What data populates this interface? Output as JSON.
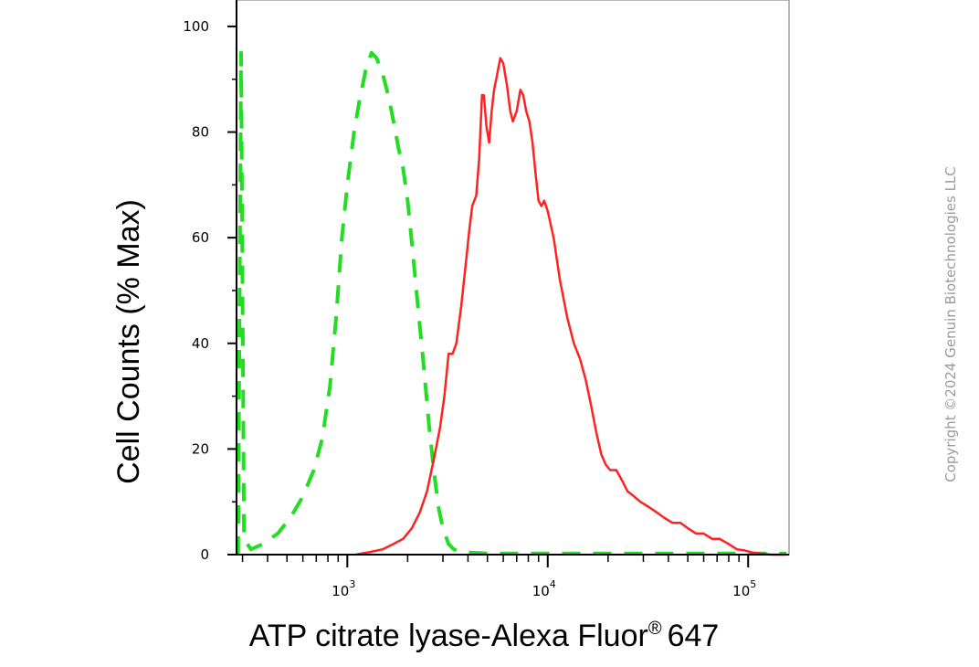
{
  "chart_data": {
    "type": "line",
    "xlabel": "ATP citrate lyase-Alexa Fluor",
    "xlabel_super": "®",
    "xlabel_suffix": "647",
    "ylabel": "Cell Counts (% Max)",
    "x_scale": "log",
    "xlim": [
      280,
      160000
    ],
    "ylim": [
      0,
      105
    ],
    "y_ticks": [
      0,
      20,
      40,
      60,
      80,
      100
    ],
    "x_major_ticks": [
      {
        "value": 1000,
        "base": "10",
        "exp": "3"
      },
      {
        "value": 10000,
        "base": "10",
        "exp": "4"
      },
      {
        "value": 100000,
        "base": "10",
        "exp": "5"
      }
    ],
    "grid": false,
    "legend": "none",
    "series": [
      {
        "color": "#22dd22",
        "style": "dashed",
        "points": [
          [
            285,
            0
          ],
          [
            295,
            95
          ],
          [
            305,
            3
          ],
          [
            330,
            1
          ],
          [
            380,
            2
          ],
          [
            450,
            4
          ],
          [
            520,
            7
          ],
          [
            600,
            11
          ],
          [
            680,
            16
          ],
          [
            750,
            22
          ],
          [
            820,
            32
          ],
          [
            880,
            45
          ],
          [
            940,
            60
          ],
          [
            1000,
            70
          ],
          [
            1080,
            80
          ],
          [
            1150,
            86
          ],
          [
            1240,
            92
          ],
          [
            1320,
            95
          ],
          [
            1400,
            94
          ],
          [
            1500,
            91
          ],
          [
            1600,
            87
          ],
          [
            1700,
            82
          ],
          [
            1800,
            77
          ],
          [
            1900,
            73
          ],
          [
            2000,
            67
          ],
          [
            2100,
            59
          ],
          [
            2250,
            47
          ],
          [
            2400,
            36
          ],
          [
            2550,
            25
          ],
          [
            2700,
            16
          ],
          [
            2850,
            9
          ],
          [
            3000,
            5
          ],
          [
            3200,
            2
          ],
          [
            3400,
            1
          ],
          [
            3700,
            0.5
          ],
          [
            5000,
            0.2
          ],
          [
            20000,
            0.2
          ],
          [
            100000,
            0.2
          ],
          [
            155000,
            0.2
          ]
        ]
      },
      {
        "color": "#ff2222",
        "style": "solid",
        "points": [
          [
            1100,
            0
          ],
          [
            1300,
            0.5
          ],
          [
            1500,
            1
          ],
          [
            1700,
            2
          ],
          [
            1900,
            3
          ],
          [
            2100,
            5
          ],
          [
            2300,
            8
          ],
          [
            2500,
            12
          ],
          [
            2700,
            18
          ],
          [
            2900,
            24
          ],
          [
            3050,
            30
          ],
          [
            3200,
            38
          ],
          [
            3350,
            38
          ],
          [
            3500,
            40
          ],
          [
            3700,
            47
          ],
          [
            3900,
            55
          ],
          [
            4050,
            61
          ],
          [
            4200,
            66
          ],
          [
            4400,
            68
          ],
          [
            4550,
            75
          ],
          [
            4700,
            87
          ],
          [
            4800,
            87
          ],
          [
            4950,
            81
          ],
          [
            5100,
            78
          ],
          [
            5250,
            84
          ],
          [
            5400,
            88
          ],
          [
            5600,
            91
          ],
          [
            5800,
            94
          ],
          [
            6000,
            93
          ],
          [
            6250,
            89
          ],
          [
            6500,
            84
          ],
          [
            6700,
            82
          ],
          [
            7000,
            84
          ],
          [
            7300,
            88
          ],
          [
            7550,
            87
          ],
          [
            7800,
            84
          ],
          [
            8100,
            82
          ],
          [
            8400,
            78
          ],
          [
            8700,
            72
          ],
          [
            9000,
            67
          ],
          [
            9300,
            66
          ],
          [
            9600,
            67
          ],
          [
            10000,
            65
          ],
          [
            10700,
            60
          ],
          [
            11500,
            52
          ],
          [
            12500,
            45
          ],
          [
            13500,
            40
          ],
          [
            14500,
            37
          ],
          [
            15500,
            33
          ],
          [
            16500,
            28
          ],
          [
            17500,
            23
          ],
          [
            18500,
            19
          ],
          [
            19500,
            17
          ],
          [
            20500,
            16
          ],
          [
            22000,
            16
          ],
          [
            23500,
            14
          ],
          [
            25000,
            12
          ],
          [
            27000,
            11
          ],
          [
            29000,
            10
          ],
          [
            32000,
            9
          ],
          [
            35000,
            8
          ],
          [
            38000,
            7
          ],
          [
            42000,
            6
          ],
          [
            46000,
            6
          ],
          [
            50000,
            5
          ],
          [
            55000,
            4
          ],
          [
            60000,
            4
          ],
          [
            66000,
            3
          ],
          [
            72000,
            3
          ],
          [
            80000,
            2
          ],
          [
            88000,
            1
          ],
          [
            96000,
            0.8
          ],
          [
            105000,
            0.4
          ],
          [
            115000,
            0.2
          ],
          [
            130000,
            0
          ],
          [
            155000,
            0
          ]
        ]
      }
    ]
  },
  "watermark": {
    "copyright": "Copyright ©2024 Genuin Biotechnologies LLC"
  }
}
